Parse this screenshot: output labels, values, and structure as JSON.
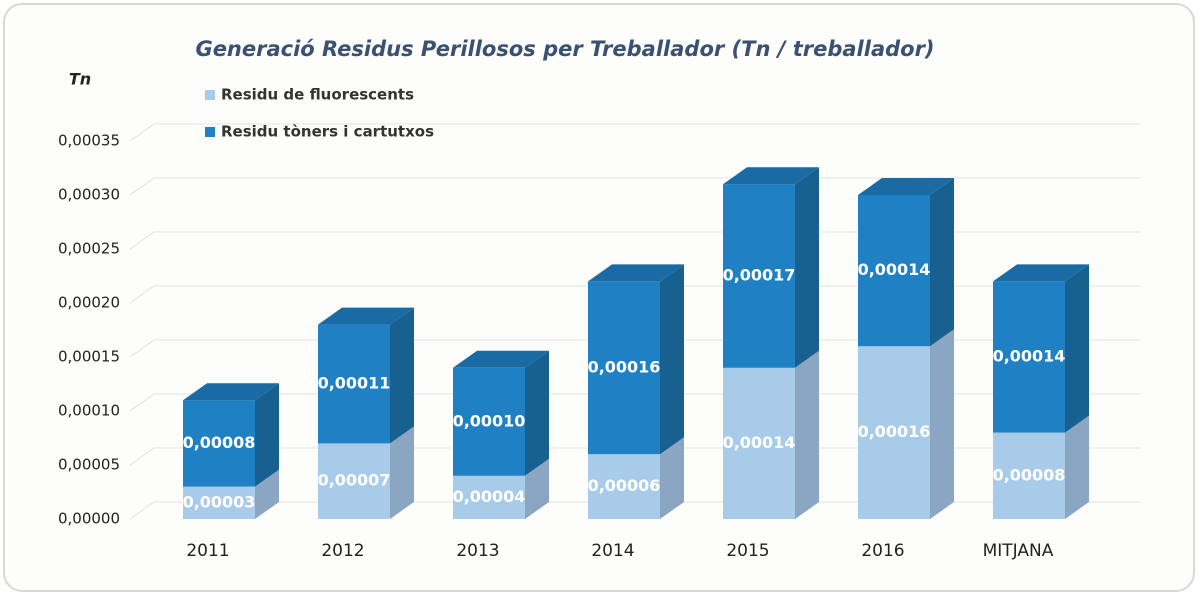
{
  "chart_data": {
    "type": "stacked_bar_3d",
    "title": "Generació Residus Perillosos per Treballador (Tn / treballador)",
    "y_label": "Tn",
    "categories": [
      "2011",
      "2012",
      "2013",
      "2014",
      "2015",
      "2016",
      "MITJANA"
    ],
    "series": [
      {
        "name": "Residu de fluorescents",
        "color": "#a9cbea",
        "side_color": "#8aa6c2",
        "values": [
          3e-05,
          7e-05,
          4e-05,
          6e-05,
          0.00014,
          0.00016,
          8e-05
        ],
        "value_labels": [
          "0,00003",
          "0,00007",
          "0,00004",
          "0,00006",
          "0,00014",
          "0,00016",
          "0,00008"
        ]
      },
      {
        "name": "Residu tòners i cartutxos",
        "color": "#1f80c4",
        "side_color": "#17608f",
        "values": [
          8e-05,
          0.00011,
          0.0001,
          0.00016,
          0.00017,
          0.00014,
          0.00014
        ],
        "value_labels": [
          "0,00008",
          "0,00011",
          "0,00010",
          "0,00016",
          "0,00017",
          "0,00014",
          "0,00014"
        ]
      }
    ],
    "ylim": [
      0,
      0.00035
    ],
    "yticks": [
      {
        "value": 0,
        "label": "0,00000"
      },
      {
        "value": 5e-05,
        "label": "0,00005"
      },
      {
        "value": 0.0001,
        "label": "0,00010"
      },
      {
        "value": 0.00015,
        "label": "0,00015"
      },
      {
        "value": 0.0002,
        "label": "0,00020"
      },
      {
        "value": 0.00025,
        "label": "0,00025"
      },
      {
        "value": 0.0003,
        "label": "0,00030"
      },
      {
        "value": 0.00035,
        "label": "0,00035"
      }
    ],
    "grid": true,
    "legend": "top-left"
  }
}
